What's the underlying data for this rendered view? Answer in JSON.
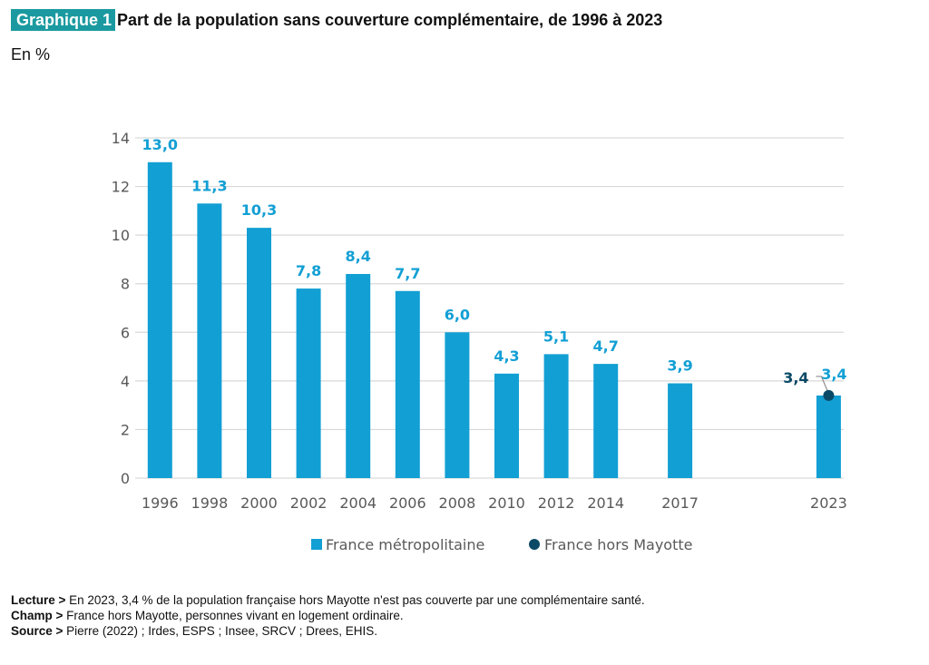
{
  "header": {
    "badge": "Graphique 1",
    "title": "Part de la population sans couverture complémentaire, de 1996 à 2023",
    "unit": "En %"
  },
  "colors": {
    "bar": "#129fd4",
    "point": "#0b4a66",
    "grid": "#d9d9d9",
    "bar_label": "#129fd4",
    "point_label": "#0b4a66"
  },
  "chart_data": {
    "type": "bar",
    "title": "Part de la population sans couverture complémentaire, de 1996 à 2023",
    "xlabel": "",
    "ylabel": "En %",
    "ylim": [
      0,
      14
    ],
    "yticks": [
      "0",
      "2",
      "4",
      "6",
      "8",
      "10",
      "12",
      "14"
    ],
    "grid": true,
    "legend_position": "bottom",
    "categories": [
      "1996",
      "1998",
      "2000",
      "2002",
      "2004",
      "2006",
      "2008",
      "2010",
      "2012",
      "2014",
      "2017",
      "2023"
    ],
    "series": [
      {
        "name": "France métropolitaine",
        "type": "bar",
        "values": [
          13.0,
          11.3,
          10.3,
          7.8,
          8.4,
          7.7,
          6.0,
          4.3,
          5.1,
          4.7,
          3.9,
          3.4
        ],
        "labels": [
          "13,0",
          "11,3",
          "10,3",
          "7,8",
          "8,4",
          "7,7",
          "6,0",
          "4,3",
          "5,1",
          "4,7",
          "3,9",
          "3,4"
        ]
      },
      {
        "name": "France hors Mayotte",
        "type": "scatter",
        "values": [
          null,
          null,
          null,
          null,
          null,
          null,
          null,
          null,
          null,
          null,
          null,
          3.4
        ],
        "labels": [
          null,
          null,
          null,
          null,
          null,
          null,
          null,
          null,
          null,
          null,
          null,
          "3,4"
        ]
      }
    ]
  },
  "notes": {
    "lecture_label": "Lecture >",
    "lecture_text": " En 2023, 3,4 % de la population française hors Mayotte n'est pas couverte par une complémentaire santé.",
    "champ_label": "Champ >",
    "champ_text": " France hors Mayotte, personnes vivant en logement ordinaire.",
    "source_label": "Source >",
    "source_text": " Pierre (2022) ; Irdes, ESPS ; Insee, SRCV ; Drees, EHIS."
  }
}
